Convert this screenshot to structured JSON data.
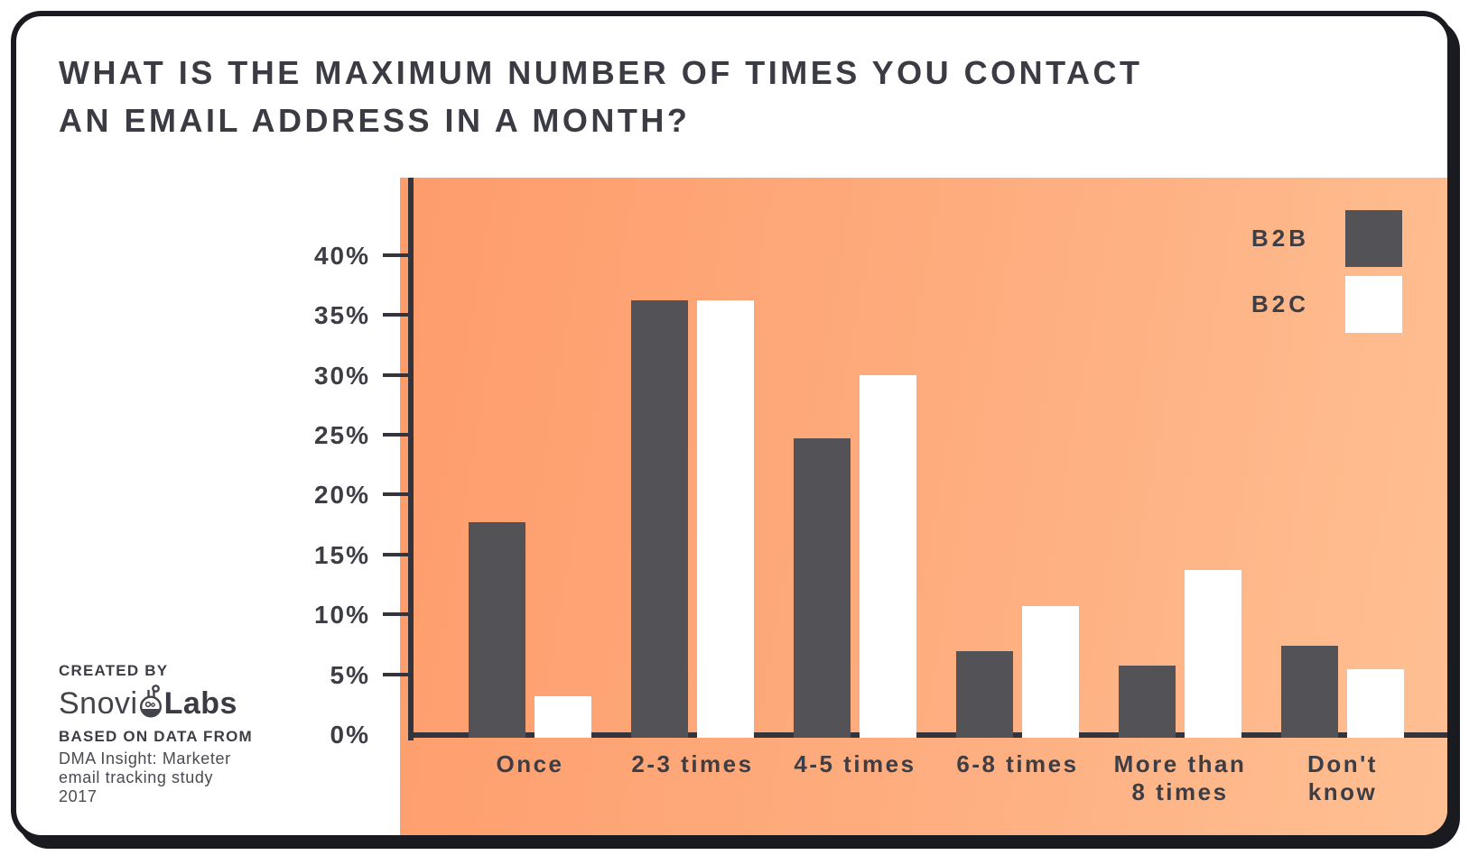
{
  "title": {
    "line1": "WHAT IS THE MAXIMUM NUMBER OF TIMES YOU CONTACT",
    "line2": "AN EMAIL ADDRESS IN A MONTH?"
  },
  "credits": {
    "created_by": "CREATED BY",
    "logo_text_1": "Snovi",
    "logo_flask_icon": "flask-icon",
    "logo_text_2": "Labs",
    "based_on": "BASED ON DATA FROM",
    "source_lines": [
      "DMA Insight: Marketer",
      "email tracking study",
      "2017"
    ]
  },
  "chart_data": {
    "type": "bar",
    "title": "What is the maximum number of times you contact an email address in a month?",
    "categories": [
      "Once",
      "2-3 times",
      "4-5 times",
      "6-8 times",
      "More than 8 times",
      "Don't know"
    ],
    "category_label_lines": [
      [
        "Once"
      ],
      [
        "2-3 times"
      ],
      [
        "4-5 times"
      ],
      [
        "6-8 times"
      ],
      [
        "More than",
        "8 times"
      ],
      [
        "Don't",
        "know"
      ]
    ],
    "series": [
      {
        "name": "B2B",
        "color": "#535257",
        "values": [
          18,
          36.5,
          25,
          7.2,
          6,
          7.7
        ]
      },
      {
        "name": "B2C",
        "color": "#ffffff",
        "values": [
          3.5,
          36.5,
          30.3,
          11,
          14,
          5.7
        ]
      }
    ],
    "y_ticks": [
      "40%",
      "35%",
      "30%",
      "25%",
      "20%",
      "15%",
      "10%",
      "5%",
      "0%"
    ],
    "y_tick_values": [
      40,
      35,
      30,
      25,
      20,
      15,
      10,
      5,
      0
    ],
    "ylim": [
      0,
      46
    ],
    "xlabel": "",
    "ylabel": "",
    "grid": false,
    "legend_position": "top-right",
    "plot_background": "orange-gradient",
    "colors": {
      "axis": "#34343d",
      "text": "#3d3d46",
      "plot_bg_start": "#fe9c6b",
      "plot_bg_end": "#ffc093"
    }
  }
}
